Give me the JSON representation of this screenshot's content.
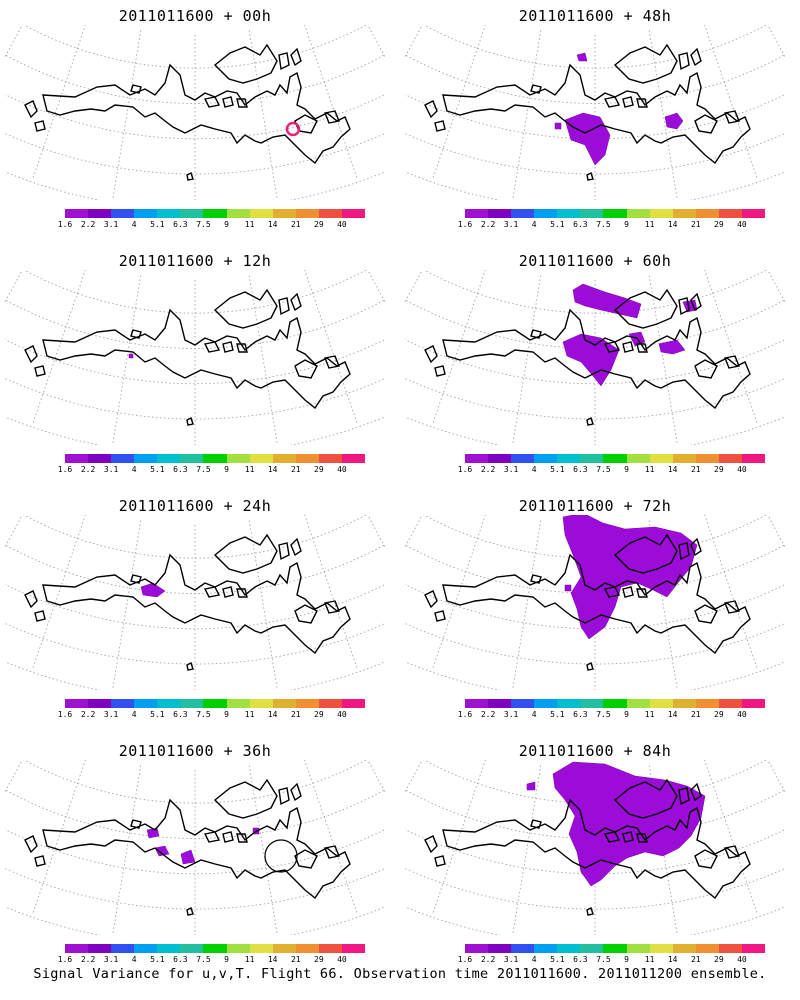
{
  "panels": [
    {
      "title": "2011011600 + 00h",
      "lead": "00h"
    },
    {
      "title": "2011011600 + 48h",
      "lead": "48h"
    },
    {
      "title": "2011011600 + 12h",
      "lead": "12h"
    },
    {
      "title": "2011011600 + 60h",
      "lead": "60h"
    },
    {
      "title": "2011011600 + 24h",
      "lead": "24h"
    },
    {
      "title": "2011011600 + 72h",
      "lead": "72h"
    },
    {
      "title": "2011011600 + 36h",
      "lead": "36h"
    },
    {
      "title": "2011011600 + 84h",
      "lead": "84h"
    }
  ],
  "colorbar": {
    "labels": [
      "1.6",
      "2.2",
      "3.1",
      "4",
      "5.1",
      "6.3",
      "7.5",
      "9",
      "11",
      "14",
      "21",
      "29",
      "40"
    ],
    "colors": [
      "#a010d0",
      "#8000c0",
      "#3050f0",
      "#00a0f0",
      "#00c0d0",
      "#20c0a0",
      "#00d000",
      "#a0e040",
      "#e0e040",
      "#e0b030",
      "#f09030",
      "#f05040",
      "#f01880"
    ]
  },
  "footer": "Signal Variance for u,v,T. Flight 66. Observation time 2011011600. 2011011200 ensemble.",
  "colors": {
    "fill": "#9c0cd8",
    "ring": "#e8207a",
    "coast": "#000000",
    "grid": "#9a9a9a"
  }
}
